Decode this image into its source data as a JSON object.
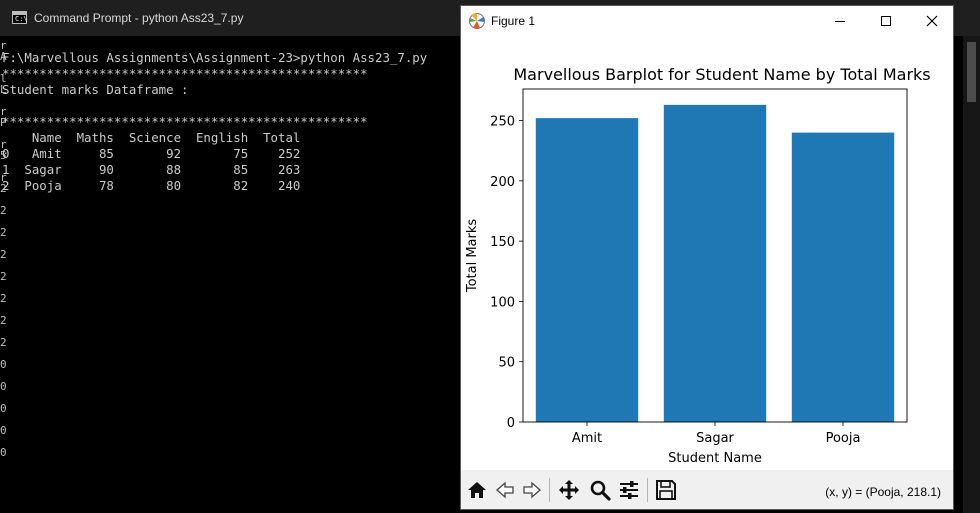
{
  "cmd": {
    "title": "Command Prompt - python  Ass23_7.py",
    "edge_chars": [
      "r",
      "A",
      "",
      "l",
      "L",
      "",
      "r",
      "P",
      "",
      "r",
      "5",
      "",
      "r",
      "2",
      "",
      "2",
      "",
      "2",
      "",
      "2",
      "",
      "2",
      "",
      "2",
      "",
      "2",
      "",
      "2",
      "",
      "0",
      "",
      "0",
      "",
      "0",
      "",
      "0",
      "",
      "0"
    ],
    "lines": [
      "F:\\Marvellous Assignments\\Assignment-23>python Ass23_7.py",
      "*************************************************",
      "Student marks Dataframe :",
      "",
      "*************************************************",
      "    Name  Maths  Science  English  Total",
      "0   Amit     85       92       75    252",
      "1  Sagar     90       88       85    263",
      "2  Pooja     78       80       82    240"
    ]
  },
  "figure": {
    "window_title": "Figure 1",
    "coord_readout": "(x, y) = (Pooja, 218.1)",
    "bar_color": "#1f77b4"
  },
  "chart_data": {
    "type": "bar",
    "title": "Marvellous Barplot for Student Name by Total Marks",
    "xlabel": "Student Name",
    "ylabel": "Total Marks",
    "categories": [
      "Amit",
      "Sagar",
      "Pooja"
    ],
    "values": [
      252,
      263,
      240
    ],
    "ylim": [
      0,
      276.15
    ],
    "yticks": [
      0,
      50,
      100,
      150,
      200,
      250
    ],
    "grid": false
  }
}
